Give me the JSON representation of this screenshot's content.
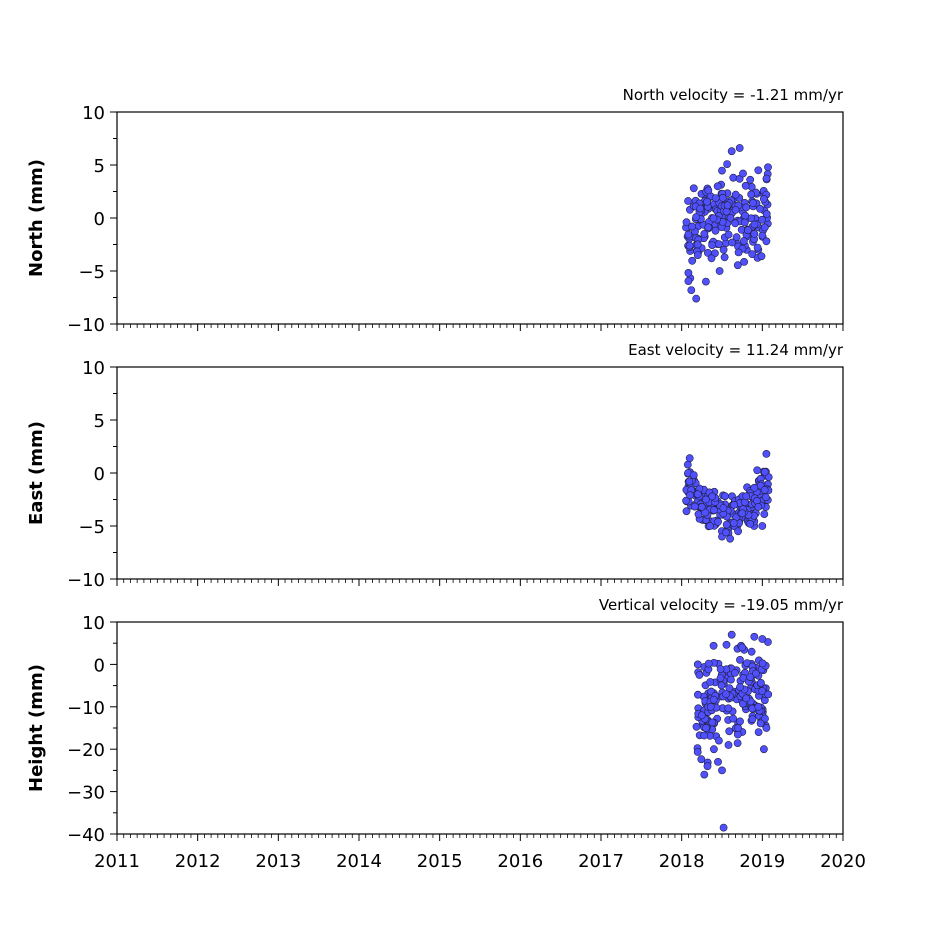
{
  "chart_data": [
    {
      "type": "scatter",
      "title": "North velocity = -1.21 mm/yr",
      "ylabel": "North (mm)",
      "xlim": [
        2011,
        2020
      ],
      "ylim": [
        -10,
        10
      ],
      "yticks": [
        10,
        5,
        0,
        -5,
        -10
      ],
      "yticklabels": [
        "10",
        "5",
        "0",
        "−5",
        "−10"
      ],
      "xticks": [
        2011,
        2012,
        2013,
        2014,
        2015,
        2016,
        2017,
        2018,
        2019,
        2020
      ],
      "xticklabels": [
        "",
        "",
        "",
        "",
        "",
        "",
        "",
        "",
        "",
        ""
      ],
      "marker_color": "#5050ff",
      "series": [
        {
          "start": 2018.05,
          "end": 2019.08,
          "points": [
            [
              2018.06,
              -0.4
            ],
            [
              2018.08,
              1.6
            ],
            [
              2018.1,
              -2.6
            ],
            [
              2018.12,
              -6.8
            ],
            [
              2018.15,
              2.8
            ],
            [
              2018.18,
              -7.6
            ],
            [
              2018.2,
              -3.5
            ],
            [
              2018.23,
              0.9
            ],
            [
              2018.28,
              -1.5
            ],
            [
              2018.3,
              -6.0
            ],
            [
              2018.33,
              2.6
            ],
            [
              2018.37,
              -3.8
            ],
            [
              2018.42,
              -1.2
            ],
            [
              2018.47,
              -5.0
            ],
            [
              2018.52,
              -3.0
            ],
            [
              2018.57,
              1.2
            ],
            [
              2018.62,
              6.3
            ],
            [
              2018.67,
              2.2
            ],
            [
              2018.72,
              6.6
            ],
            [
              2018.76,
              4.2
            ],
            [
              2018.8,
              1.0
            ],
            [
              2018.85,
              3.6
            ],
            [
              2018.9,
              -1.5
            ],
            [
              2018.95,
              4.5
            ],
            [
              2018.99,
              -3.6
            ],
            [
              2019.02,
              1.8
            ],
            [
              2019.05,
              -2.2
            ]
          ]
        }
      ]
    },
    {
      "type": "scatter",
      "title": "East velocity = 11.24 mm/yr",
      "ylabel": "East (mm)",
      "xlim": [
        2011,
        2020
      ],
      "ylim": [
        -10,
        10
      ],
      "yticks": [
        10,
        5,
        0,
        -5,
        -10
      ],
      "yticklabels": [
        "10",
        "5",
        "0",
        "−5",
        "−10"
      ],
      "xticks": [
        2011,
        2012,
        2013,
        2014,
        2015,
        2016,
        2017,
        2018,
        2019,
        2020
      ],
      "xticklabels": [
        "",
        "",
        "",
        "",
        "",
        "",
        "",
        "",
        "",
        ""
      ],
      "marker_color": "#5050ff",
      "series": [
        {
          "start": 2018.05,
          "end": 2019.08,
          "points": [
            [
              2018.06,
              -3.6
            ],
            [
              2018.08,
              0.0
            ],
            [
              2018.1,
              1.4
            ],
            [
              2018.15,
              -0.2
            ],
            [
              2018.2,
              -2.0
            ],
            [
              2018.25,
              -3.2
            ],
            [
              2018.3,
              -2.5
            ],
            [
              2018.35,
              -5.0
            ],
            [
              2018.4,
              -3.5
            ],
            [
              2018.45,
              -4.6
            ],
            [
              2018.5,
              -6.0
            ],
            [
              2018.55,
              -5.6
            ],
            [
              2018.6,
              -6.2
            ],
            [
              2018.65,
              -3.0
            ],
            [
              2018.7,
              -5.5
            ],
            [
              2018.75,
              -3.8
            ],
            [
              2018.8,
              -2.2
            ],
            [
              2018.85,
              -4.8
            ],
            [
              2018.9,
              -1.4
            ],
            [
              2018.95,
              -3.2
            ],
            [
              2019.0,
              -5.0
            ],
            [
              2019.03,
              0.1
            ],
            [
              2019.05,
              1.8
            ]
          ]
        }
      ]
    },
    {
      "type": "scatter",
      "title": "Vertical velocity = -19.05 mm/yr",
      "ylabel": "Height (mm)",
      "xlim": [
        2011,
        2020
      ],
      "ylim": [
        -40,
        10
      ],
      "yticks": [
        10,
        0,
        -10,
        -20,
        -30,
        -40
      ],
      "yticklabels": [
        "10",
        "0",
        "−10",
        "−20",
        "−30",
        "−40"
      ],
      "xticks": [
        2011,
        2012,
        2013,
        2014,
        2015,
        2016,
        2017,
        2018,
        2019,
        2020
      ],
      "xticklabels": [
        "2011",
        "2012",
        "2013",
        "2014",
        "2015",
        "2016",
        "2017",
        "2018",
        "2019",
        "2020"
      ],
      "marker_color": "#5050ff",
      "series": [
        {
          "start": 2018.18,
          "end": 2019.08,
          "points": [
            [
              2018.2,
              0.0
            ],
            [
              2018.22,
              -2.5
            ],
            [
              2018.25,
              -12.0
            ],
            [
              2018.28,
              -26.0
            ],
            [
              2018.3,
              -15.0
            ],
            [
              2018.32,
              -24.0
            ],
            [
              2018.36,
              -10.0
            ],
            [
              2018.4,
              -20.0
            ],
            [
              2018.45,
              -23.0
            ],
            [
              2018.5,
              -25.0
            ],
            [
              2018.52,
              -38.5
            ],
            [
              2018.55,
              -7.0
            ],
            [
              2018.58,
              -19.0
            ],
            [
              2018.62,
              7.0
            ],
            [
              2018.66,
              -2.0
            ],
            [
              2018.7,
              -15.0
            ],
            [
              2018.75,
              4.0
            ],
            [
              2018.8,
              -8.0
            ],
            [
              2018.85,
              -3.0
            ],
            [
              2018.9,
              6.5
            ],
            [
              2018.95,
              -10.0
            ],
            [
              2019.0,
              6.0
            ],
            [
              2019.02,
              -20.0
            ],
            [
              2019.05,
              -15.0
            ]
          ]
        }
      ]
    }
  ]
}
